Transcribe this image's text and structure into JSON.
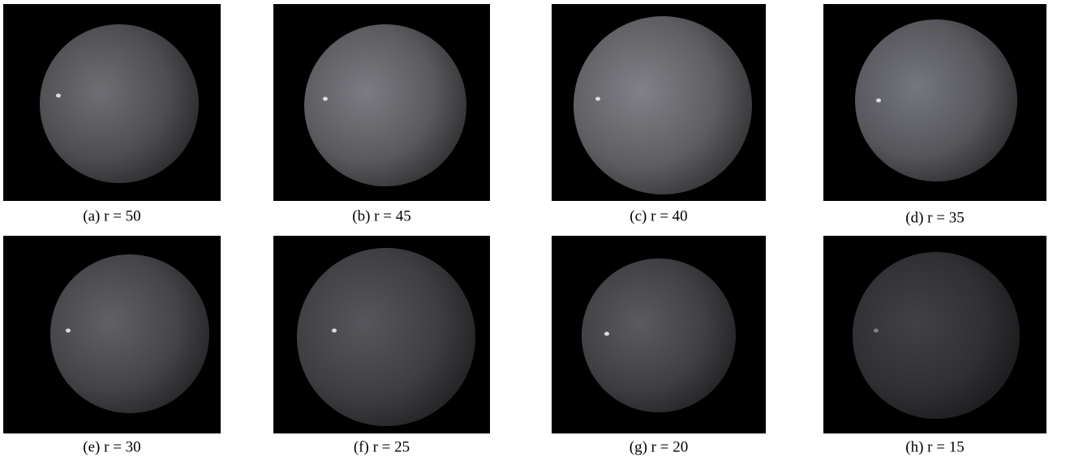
{
  "panels": [
    {
      "caption": "(a) r = 50"
    },
    {
      "caption": "(b) r = 45"
    },
    {
      "caption": "(c) r = 40"
    },
    {
      "caption": "(d) r = 35"
    },
    {
      "caption": "(e) r = 30"
    },
    {
      "caption": "(f) r = 25"
    },
    {
      "caption": "(g) r = 20"
    },
    {
      "caption": "(h) r = 15"
    }
  ]
}
